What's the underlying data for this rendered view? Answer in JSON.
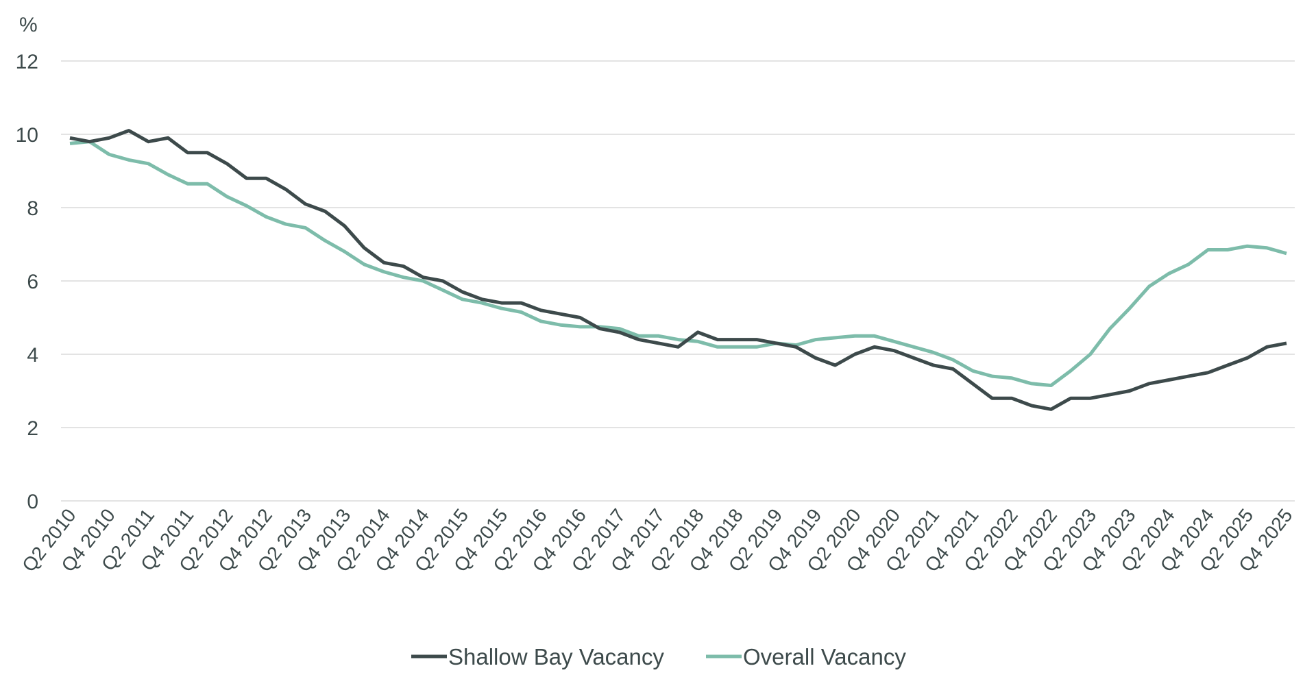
{
  "chart_data": {
    "type": "line",
    "title": "",
    "ylabel": "%",
    "xlabel": "",
    "ylim": [
      0,
      12
    ],
    "yticks": [
      0,
      2,
      4,
      6,
      8,
      10,
      12
    ],
    "grid": true,
    "legend_position": "bottom",
    "x": [
      "Q2 2010",
      "Q3 2010",
      "Q4 2010",
      "Q1 2011",
      "Q2 2011",
      "Q3 2011",
      "Q4 2011",
      "Q1 2012",
      "Q2 2012",
      "Q3 2012",
      "Q4 2012",
      "Q1 2013",
      "Q2 2013",
      "Q3 2013",
      "Q4 2013",
      "Q1 2014",
      "Q2 2014",
      "Q3 2014",
      "Q4 2014",
      "Q1 2015",
      "Q2 2015",
      "Q3 2015",
      "Q4 2015",
      "Q1 2016",
      "Q2 2016",
      "Q3 2016",
      "Q4 2016",
      "Q1 2017",
      "Q2 2017",
      "Q3 2017",
      "Q4 2017",
      "Q1 2018",
      "Q2 2018",
      "Q3 2018",
      "Q4 2018",
      "Q1 2019",
      "Q2 2019",
      "Q3 2019",
      "Q4 2019",
      "Q1 2020",
      "Q2 2020",
      "Q3 2020",
      "Q4 2020",
      "Q1 2021",
      "Q2 2021",
      "Q3 2021",
      "Q4 2021",
      "Q1 2022",
      "Q2 2022",
      "Q3 2022",
      "Q4 2022",
      "Q1 2023",
      "Q2 2023",
      "Q3 2023",
      "Q4 2023",
      "Q1 2024",
      "Q2 2024",
      "Q3 2024",
      "Q4 2024",
      "Q1 2025",
      "Q2 2025",
      "Q3 2025",
      "Q4 2025"
    ],
    "xtick_labels": [
      "Q2 2010",
      "Q4 2010",
      "Q2 2011",
      "Q4 2011",
      "Q2 2012",
      "Q4 2012",
      "Q2 2013",
      "Q4 2013",
      "Q2 2014",
      "Q4 2014",
      "Q2 2015",
      "Q4 2015",
      "Q2 2016",
      "Q4 2016",
      "Q2 2017",
      "Q4 2017",
      "Q2 2018",
      "Q4 2018",
      "Q2 2019",
      "Q4 2019",
      "Q2 2020",
      "Q4 2020",
      "Q2 2021",
      "Q4 2021",
      "Q2 2022",
      "Q4 2022",
      "Q2 2023",
      "Q4 2023",
      "Q2 2024",
      "Q4 2024",
      "Q2 2025",
      "Q4 2025"
    ],
    "series": [
      {
        "name": "Shallow Bay Vacancy",
        "color": "#3d4a4b",
        "values": [
          9.9,
          9.8,
          9.9,
          10.1,
          9.8,
          9.9,
          9.5,
          9.5,
          9.2,
          8.8,
          8.8,
          8.5,
          8.1,
          7.9,
          7.5,
          6.9,
          6.5,
          6.4,
          6.1,
          6.0,
          5.7,
          5.5,
          5.4,
          5.4,
          5.2,
          5.1,
          5.0,
          4.7,
          4.6,
          4.4,
          4.3,
          4.2,
          4.6,
          4.4,
          4.4,
          4.4,
          4.3,
          4.2,
          3.9,
          3.7,
          4.0,
          4.2,
          4.1,
          3.9,
          3.7,
          3.6,
          3.2,
          2.8,
          2.8,
          2.6,
          2.5,
          2.8,
          2.8,
          2.9,
          3.0,
          3.2,
          3.3,
          3.4,
          3.5,
          3.7,
          3.9,
          4.2,
          4.3
        ]
      },
      {
        "name": "Overall Vacancy",
        "color": "#7dbcaa",
        "values": [
          9.75,
          9.8,
          9.45,
          9.3,
          9.2,
          8.9,
          8.65,
          8.65,
          8.3,
          8.05,
          7.75,
          7.55,
          7.45,
          7.1,
          6.8,
          6.45,
          6.25,
          6.1,
          6.0,
          5.75,
          5.5,
          5.4,
          5.25,
          5.15,
          4.9,
          4.8,
          4.75,
          4.75,
          4.7,
          4.5,
          4.5,
          4.4,
          4.35,
          4.2,
          4.2,
          4.2,
          4.3,
          4.25,
          4.4,
          4.45,
          4.5,
          4.5,
          4.35,
          4.2,
          4.05,
          3.85,
          3.55,
          3.4,
          3.35,
          3.2,
          3.15,
          3.55,
          4.0,
          4.7,
          5.25,
          5.85,
          6.2,
          6.45,
          6.85,
          6.85,
          6.95,
          6.9,
          6.75
        ]
      }
    ]
  }
}
